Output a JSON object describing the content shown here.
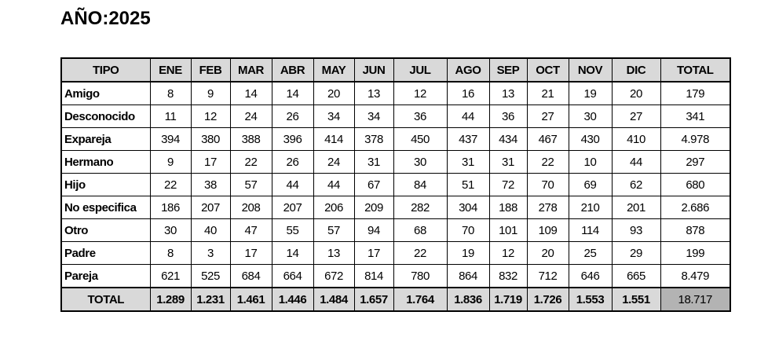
{
  "title": "AÑO:2025",
  "table": {
    "header": [
      "TIPO",
      "ENE",
      "FEB",
      "MAR",
      "ABR",
      "MAY",
      "JUN",
      "JUL",
      "AGO",
      "SEP",
      "OCT",
      "NOV",
      "DIC",
      "TOTAL"
    ],
    "rows": [
      [
        "Amigo",
        "8",
        "9",
        "14",
        "14",
        "20",
        "13",
        "12",
        "16",
        "13",
        "21",
        "19",
        "20",
        "179"
      ],
      [
        "Desconocido",
        "11",
        "12",
        "24",
        "26",
        "34",
        "34",
        "36",
        "44",
        "36",
        "27",
        "30",
        "27",
        "341"
      ],
      [
        "Expareja",
        "394",
        "380",
        "388",
        "396",
        "414",
        "378",
        "450",
        "437",
        "434",
        "467",
        "430",
        "410",
        "4.978"
      ],
      [
        "Hermano",
        "9",
        "17",
        "22",
        "26",
        "24",
        "31",
        "30",
        "31",
        "31",
        "22",
        "10",
        "44",
        "297"
      ],
      [
        "Hijo",
        "22",
        "38",
        "57",
        "44",
        "44",
        "67",
        "84",
        "51",
        "72",
        "70",
        "69",
        "62",
        "680"
      ],
      [
        "No especifica",
        "186",
        "207",
        "208",
        "207",
        "206",
        "209",
        "282",
        "304",
        "188",
        "278",
        "210",
        "201",
        "2.686"
      ],
      [
        "Otro",
        "30",
        "40",
        "47",
        "55",
        "57",
        "94",
        "68",
        "70",
        "101",
        "109",
        "114",
        "93",
        "878"
      ],
      [
        "Padre",
        "8",
        "3",
        "17",
        "14",
        "13",
        "17",
        "22",
        "19",
        "12",
        "20",
        "25",
        "29",
        "199"
      ],
      [
        "Pareja",
        "621",
        "525",
        "684",
        "664",
        "672",
        "814",
        "780",
        "864",
        "832",
        "712",
        "646",
        "665",
        "8.479"
      ]
    ],
    "total": [
      "TOTAL",
      "1.289",
      "1.231",
      "1.461",
      "1.446",
      "1.484",
      "1.657",
      "1.764",
      "1.836",
      "1.719",
      "1.726",
      "1.553",
      "1.551",
      "18.717"
    ]
  }
}
